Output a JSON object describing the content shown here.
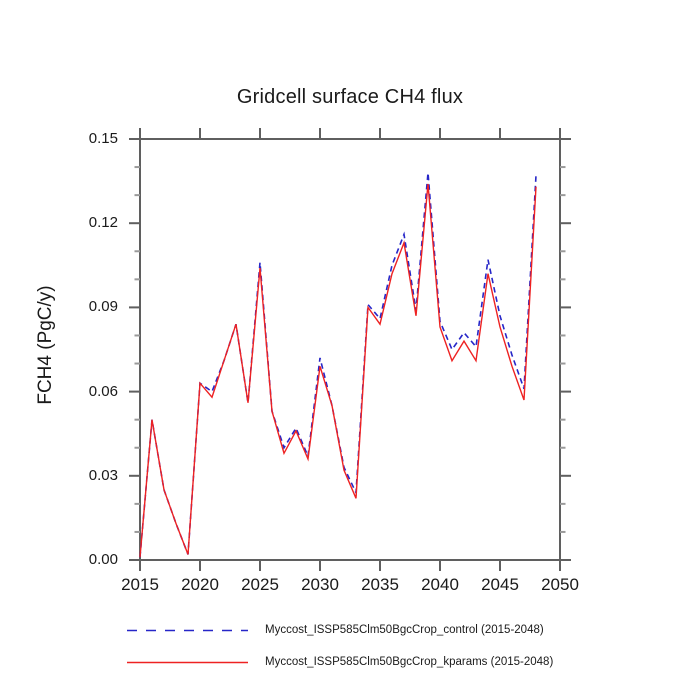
{
  "title": "Gridcell surface CH4 flux",
  "y_axis": {
    "label": "FCH4  (PgC/y)",
    "tick_labels": [
      "0.00",
      "0.03",
      "0.06",
      "0.09",
      "0.12",
      "0.15"
    ],
    "min": 0.0,
    "max": 0.15,
    "major_step": 0.03,
    "minor_step": 0.01
  },
  "x_axis": {
    "tick_labels": [
      "2015",
      "2020",
      "2025",
      "2030",
      "2035",
      "2040",
      "2045",
      "2050"
    ],
    "min": 2015,
    "max": 2050,
    "major_step": 5
  },
  "colors": {
    "control_line": "#2626c8",
    "kparams_line": "#ee2222",
    "axis_frame": "#5f5f5f",
    "minor_tick": "#9a9a9a"
  },
  "chart_data": {
    "type": "line",
    "title": "Gridcell surface CH4 flux",
    "xlabel": "",
    "ylabel": "FCH4  (PgC/y)",
    "xlim": [
      2015,
      2050
    ],
    "ylim": [
      0.0,
      0.15
    ],
    "grid": "off",
    "legend_position": "below-plot",
    "x": [
      2015,
      2016,
      2017,
      2018,
      2019,
      2020,
      2021,
      2022,
      2023,
      2024,
      2025,
      2026,
      2027,
      2028,
      2029,
      2030,
      2031,
      2032,
      2033,
      2034,
      2035,
      2036,
      2037,
      2038,
      2039,
      2040,
      2041,
      2042,
      2043,
      2044,
      2045,
      2046,
      2047,
      2048
    ],
    "series": [
      {
        "name": "Myccost_ISSP585Clm50BgcCrop_control (2015-2048)",
        "color": "#2626c8",
        "line_style": "dashed",
        "values": [
          0.001,
          0.05,
          0.025,
          0.013,
          0.002,
          0.063,
          0.06,
          0.071,
          0.084,
          0.056,
          0.106,
          0.053,
          0.04,
          0.047,
          0.037,
          0.072,
          0.055,
          0.033,
          0.024,
          0.091,
          0.086,
          0.105,
          0.116,
          0.089,
          0.138,
          0.085,
          0.075,
          0.081,
          0.076,
          0.107,
          0.087,
          0.073,
          0.061,
          0.137
        ]
      },
      {
        "name": "Myccost_ISSP585Clm50BgcCrop_kparams (2015-2048)",
        "color": "#ee2222",
        "line_style": "solid",
        "values": [
          0.001,
          0.05,
          0.025,
          0.013,
          0.002,
          0.063,
          0.058,
          0.071,
          0.084,
          0.056,
          0.104,
          0.053,
          0.038,
          0.046,
          0.036,
          0.069,
          0.055,
          0.032,
          0.022,
          0.09,
          0.084,
          0.102,
          0.113,
          0.087,
          0.134,
          0.083,
          0.071,
          0.078,
          0.071,
          0.102,
          0.083,
          0.069,
          0.057,
          0.133
        ]
      }
    ]
  }
}
